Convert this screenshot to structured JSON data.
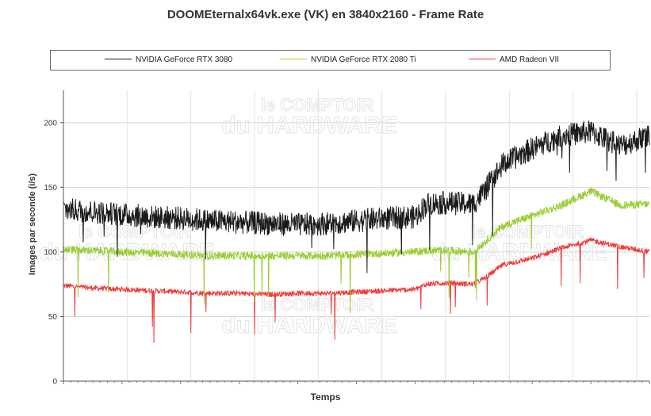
{
  "chart_data": {
    "type": "line",
    "title": "DOOMEternalx64vk.exe (VK) en 3840x2160 - Frame Rate",
    "xlabel": "Temps",
    "ylabel": "Images par seconde (i/s)",
    "ylim": [
      0,
      225
    ],
    "yticks": [
      0,
      50,
      100,
      150,
      200
    ],
    "grid": true,
    "legend_position": "top",
    "watermark": [
      "le COMPTOIR",
      "du HARDWARE"
    ],
    "x": [
      0,
      5,
      10,
      15,
      20,
      25,
      30,
      35,
      40,
      45,
      50,
      55,
      60,
      62,
      65,
      70,
      72,
      75,
      80,
      85,
      90,
      95,
      100
    ],
    "series": [
      {
        "name": "NVIDIA GeForce RTX 3080",
        "color": "#1a1a1a",
        "noise": 9,
        "values": [
          133,
          131,
          129,
          127,
          126,
          124,
          123,
          122,
          121,
          122,
          124,
          126,
          127,
          137,
          138,
          137,
          148,
          168,
          180,
          190,
          193,
          182,
          190
        ]
      },
      {
        "name": "NVIDIA GeForce RTX 2080 Ti",
        "color": "#9acd32",
        "noise": 3,
        "values": [
          102,
          101,
          100,
          99,
          98,
          97,
          97,
          97,
          97,
          97,
          98,
          99,
          100,
          101,
          101,
          100,
          108,
          120,
          128,
          136,
          147,
          136,
          137
        ]
      },
      {
        "name": "AMD Radeon VII",
        "color": "#ee3b3b",
        "noise": 2,
        "values": [
          74,
          72,
          71,
          70,
          69,
          68,
          68,
          67,
          68,
          68,
          69,
          70,
          71,
          75,
          76,
          75,
          80,
          90,
          95,
          103,
          109,
          104,
          100
        ]
      }
    ]
  }
}
